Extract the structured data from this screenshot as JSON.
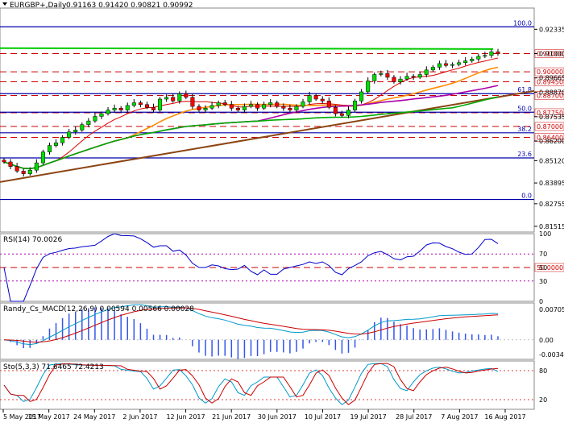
{
  "header": {
    "symbol_label": "EURGBP+,Daily",
    "ohlc": "0.91163 0.91420 0.90821 0.90992"
  },
  "colors": {
    "bull": "#00dd00",
    "bear": "#ff0000",
    "wick": "#000000",
    "fib_line": "#0000aa",
    "red_dash": "#cc0000",
    "trend": "#8b4513",
    "rsi": "#0000cc",
    "macd_line": "#cc0000",
    "macd_signal": "#0099cc",
    "macd_hist": "#3355ee",
    "stoch_main": "#0099cc",
    "stoch_signal": "#cc0000",
    "ma_red": "#dd0000",
    "ma_orange": "#ff8c00",
    "ma_magenta": "#aa00aa",
    "ma_green": "#00aa00"
  },
  "main_panel": {
    "price_ticks": [
      "0.92335",
      "0.91000",
      "0.89665",
      "0.88870",
      "0.87535",
      "0.86200",
      "0.85120",
      "0.83895",
      "0.82755",
      "0.81515"
    ],
    "levels": [
      {
        "price": 0.91,
        "label": "0.91000"
      },
      {
        "price": 0.9,
        "label": "0.90000"
      },
      {
        "price": 0.8945,
        "label": "0.89450"
      },
      {
        "price": 0.887,
        "label": "0.88700"
      },
      {
        "price": 0.8775,
        "label": "0.87750"
      },
      {
        "price": 0.87,
        "label": "0.87000"
      },
      {
        "price": 0.864,
        "label": "0.86400"
      }
    ],
    "fib": [
      {
        "label": "100.0",
        "price": 0.9247
      },
      {
        "label": "61.8",
        "price": 0.888
      },
      {
        "label": "50.0",
        "price": 0.8778
      },
      {
        "label": "38.2",
        "price": 0.8665
      },
      {
        "label": "23.6",
        "price": 0.8527
      },
      {
        "label": "0.0",
        "price": 0.8299
      }
    ]
  },
  "rsi_panel": {
    "label": "RSI(14) 70.0026",
    "ticks": [
      "100",
      "70",
      "50",
      "30",
      "0"
    ],
    "box_label": "50.0000"
  },
  "macd_panel": {
    "label": "Randy_Cs_MACD(12,26,9) 0.00594 0.00566 0.00028",
    "ticks": [
      "0.00705",
      "0.00",
      "-0.0034"
    ]
  },
  "stoch_panel": {
    "label": "Sto(5,3,3) 71.6465 72.4213",
    "ticks": [
      "80",
      "20"
    ]
  },
  "dates": [
    "5 May 2017",
    "15 May 2017",
    "24 May 2017",
    "2 Jun 2017",
    "12 Jun 2017",
    "21 Jun 2017",
    "30 Jun 2017",
    "10 Jul 2017",
    "19 Jul 2017",
    "28 Jul 2017",
    "7 Aug 2017",
    "16 Aug 2017"
  ],
  "chart_data": {
    "type": "candlestick",
    "closes": [
      0.8505,
      0.848,
      0.8455,
      0.844,
      0.846,
      0.85,
      0.856,
      0.8595,
      0.861,
      0.864,
      0.867,
      0.868,
      0.871,
      0.873,
      0.8755,
      0.877,
      0.879,
      0.88,
      0.879,
      0.8815,
      0.883,
      0.882,
      0.8805,
      0.879,
      0.885,
      0.886,
      0.884,
      0.888,
      0.886,
      0.881,
      0.879,
      0.88,
      0.8815,
      0.883,
      0.882,
      0.88,
      0.879,
      0.881,
      0.882,
      0.88,
      0.882,
      0.883,
      0.881,
      0.88,
      0.879,
      0.881,
      0.8835,
      0.887,
      0.885,
      0.884,
      0.8805,
      0.877,
      0.876,
      0.879,
      0.884,
      0.889,
      0.895,
      0.8985,
      0.899,
      0.897,
      0.8945,
      0.896,
      0.8975,
      0.897,
      0.8985,
      0.901,
      0.9025,
      0.9045,
      0.9035,
      0.904,
      0.905,
      0.906,
      0.907,
      0.9085,
      0.909,
      0.911,
      0.9099
    ]
  }
}
